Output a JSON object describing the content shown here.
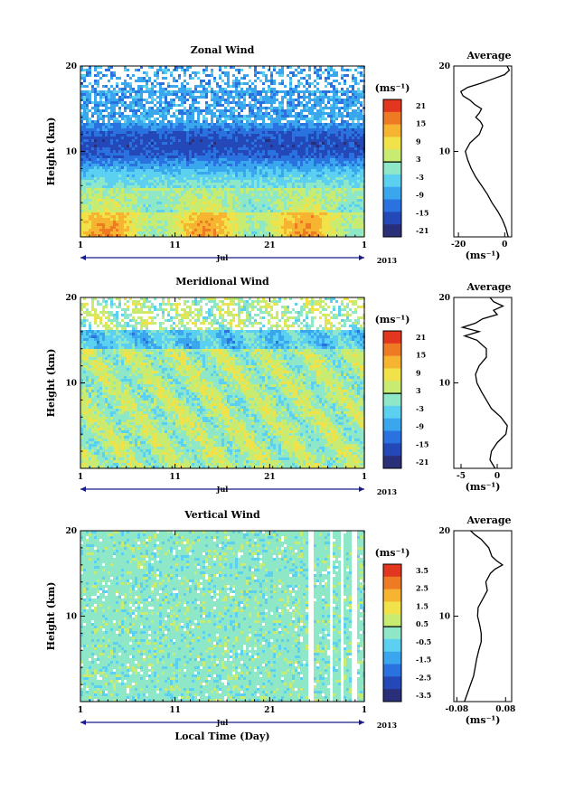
{
  "chart_data": [
    {
      "type": "heatmap",
      "title": "Zonal Wind",
      "ylabel": "Height (km)",
      "ylim": [
        0,
        20
      ],
      "y_ticks": [
        "10",
        "20"
      ],
      "x_ticks": [
        "1",
        "11",
        "21",
        "1"
      ],
      "month_label": "Jul",
      "year_label": "2013",
      "colorbar": {
        "unit": "(ms⁻¹)",
        "ticks": [
          "21",
          "15",
          "9",
          "3",
          "-3",
          "-9",
          "-15",
          "-21"
        ]
      },
      "average": {
        "title": "Average",
        "xlim": [
          -22,
          3
        ],
        "x_ticks": [
          "-20",
          "0"
        ],
        "xlabel": "(ms⁻¹)",
        "y_ticks": [
          "10",
          "20"
        ],
        "profile": [
          [
            0,
            1.5
          ],
          [
            1,
            0.5
          ],
          [
            2,
            -1
          ],
          [
            3,
            -3
          ],
          [
            4,
            -5.5
          ],
          [
            5,
            -7.5
          ],
          [
            6,
            -10
          ],
          [
            7,
            -12.5
          ],
          [
            8,
            -14.5
          ],
          [
            9,
            -16
          ],
          [
            10,
            -17
          ],
          [
            11,
            -15
          ],
          [
            12,
            -11
          ],
          [
            13,
            -9.5
          ],
          [
            13.5,
            -10.5
          ],
          [
            14,
            -12.5
          ],
          [
            14.5,
            -11
          ],
          [
            15,
            -10
          ],
          [
            15.5,
            -13
          ],
          [
            16,
            -15
          ],
          [
            16.5,
            -18
          ],
          [
            17,
            -19
          ],
          [
            17.5,
            -16
          ],
          [
            18,
            -10
          ],
          [
            18.5,
            -5
          ],
          [
            19,
            0
          ],
          [
            19.5,
            2
          ],
          [
            20,
            1
          ]
        ]
      }
    },
    {
      "type": "heatmap",
      "title": "Meridional Wind",
      "ylabel": "Height (km)",
      "ylim": [
        0,
        20
      ],
      "y_ticks": [
        "10",
        "20"
      ],
      "x_ticks": [
        "1",
        "11",
        "21",
        "1"
      ],
      "month_label": "Jul",
      "year_label": "2013",
      "colorbar": {
        "unit": "(ms⁻¹)",
        "ticks": [
          "21",
          "15",
          "9",
          "3",
          "-3",
          "-9",
          "-15",
          "-21"
        ]
      },
      "average": {
        "title": "Average",
        "xlim": [
          -6,
          2
        ],
        "x_ticks": [
          "-5",
          "0"
        ],
        "xlabel": "(ms⁻¹)",
        "y_ticks": [
          "10",
          "20"
        ],
        "profile": [
          [
            0,
            -0.3
          ],
          [
            1,
            -1
          ],
          [
            2,
            -0.8
          ],
          [
            3,
            0
          ],
          [
            4,
            1.2
          ],
          [
            5,
            1.4
          ],
          [
            6,
            0.5
          ],
          [
            7,
            -0.8
          ],
          [
            8,
            -1.5
          ],
          [
            9,
            -2.2
          ],
          [
            10,
            -2.8
          ],
          [
            11,
            -3
          ],
          [
            12,
            -2.5
          ],
          [
            13,
            -1.5
          ],
          [
            14,
            -1.5
          ],
          [
            15,
            -2.8
          ],
          [
            15.5,
            -4.5
          ],
          [
            16,
            -2.5
          ],
          [
            16.5,
            -4.8
          ],
          [
            17,
            -3
          ],
          [
            17.5,
            -2
          ],
          [
            18,
            0
          ],
          [
            18.5,
            -0.5
          ],
          [
            19,
            0.8
          ],
          [
            19.5,
            -0.5
          ],
          [
            20,
            -1
          ]
        ]
      }
    },
    {
      "type": "heatmap",
      "title": "Vertical Wind",
      "ylabel": "Height (km)",
      "xlabel": "Local Time (Day)",
      "ylim": [
        0,
        20
      ],
      "y_ticks": [
        "10",
        "20"
      ],
      "x_ticks": [
        "1",
        "11",
        "21",
        "1"
      ],
      "month_label": "Jul",
      "year_label": "2013",
      "colorbar": {
        "unit": "(ms⁻¹)",
        "ticks": [
          "3.5",
          "2.5",
          "1.5",
          "0.5",
          "-0.5",
          "-1.5",
          "-2.5",
          "-3.5"
        ]
      },
      "average": {
        "title": "Average",
        "xlim": [
          -0.09,
          0.1
        ],
        "x_ticks": [
          "-0.08",
          "0.08"
        ],
        "xlabel": "(ms⁻¹)",
        "y_ticks": [
          "10",
          "20"
        ],
        "profile": [
          [
            0,
            -0.055
          ],
          [
            1,
            -0.045
          ],
          [
            2,
            -0.035
          ],
          [
            3,
            -0.025
          ],
          [
            4,
            -0.02
          ],
          [
            5,
            -0.015
          ],
          [
            6,
            -0.008
          ],
          [
            7,
            0
          ],
          [
            8,
            0
          ],
          [
            9,
            -0.005
          ],
          [
            10,
            -0.012
          ],
          [
            11,
            -0.01
          ],
          [
            12,
            0.005
          ],
          [
            13,
            0.02
          ],
          [
            14,
            0.015
          ],
          [
            15,
            0.03
          ],
          [
            15.5,
            0.045
          ],
          [
            16,
            0.07
          ],
          [
            16.5,
            0.05
          ],
          [
            17,
            0.035
          ],
          [
            18,
            0.025
          ],
          [
            19,
            0
          ],
          [
            19.5,
            -0.02
          ],
          [
            20,
            -0.035
          ]
        ]
      }
    }
  ]
}
